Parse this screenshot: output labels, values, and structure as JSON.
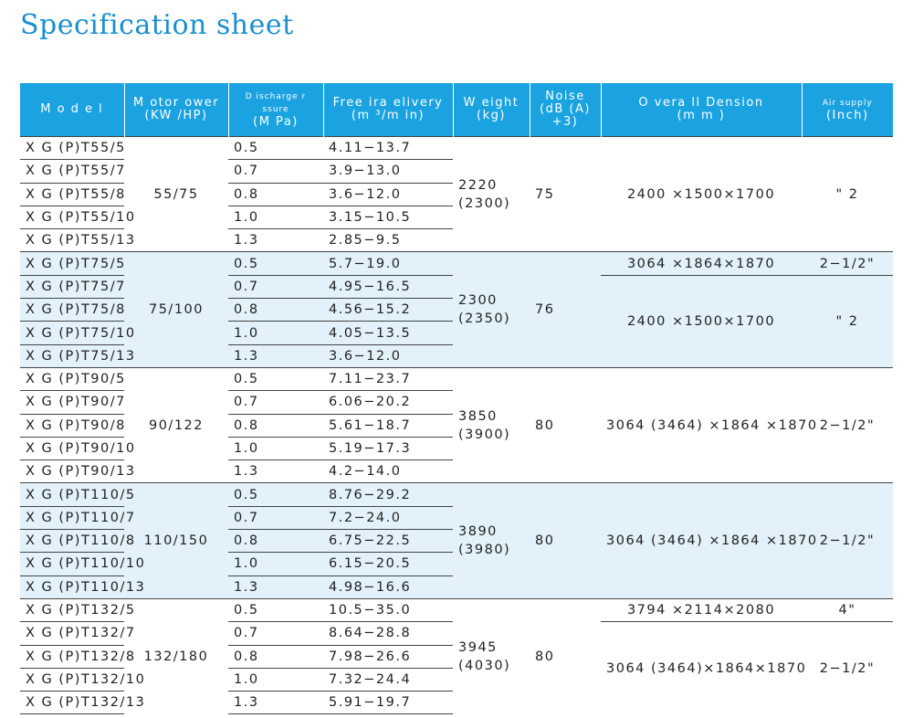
{
  "title": "Specification sheet",
  "headers": {
    "model": "M o d e l",
    "motor_power": "M otor ower (KW /HP)",
    "discharge_pressure": "D ischarge r ssure",
    "discharge_pressure_unit": "(M Pa)",
    "free_air_delivery": "Free ira elivery",
    "free_air_delivery_unit": "(m ³/m in)",
    "weight": "W eight",
    "weight_unit": "(kg)",
    "noise": "Noise",
    "noise_unit": "(dB (A) +3)",
    "overall_dimension": "O vera ll Dension",
    "overall_dimension_unit": "(m m )",
    "air_supply": "Air supply",
    "air_supply_unit": "(Inch)"
  },
  "groups": [
    {
      "motor_power": "55/75",
      "weight": "2220",
      "weight_alt": "(2300)",
      "noise": "75",
      "shaded": false,
      "rows": [
        {
          "model": "X G (P)T55/5",
          "pressure": "0.5",
          "flow": "4.11−13.7"
        },
        {
          "model": "X G (P)T55/7",
          "pressure": "0.7",
          "flow": "3.9−13.0"
        },
        {
          "model": "X G (P)T55/8",
          "pressure": "0.8",
          "flow": "3.6−12.0"
        },
        {
          "model": "X G (P)T55/10",
          "pressure": "1.0",
          "flow": "3.15−10.5"
        },
        {
          "model": "X G (P)T55/13",
          "pressure": "1.3",
          "flow": "2.85−9.5"
        }
      ],
      "dim_rows": [
        {
          "dimension": "2400 ×1500×1700",
          "air": "\" 2",
          "span": 5
        }
      ]
    },
    {
      "motor_power": "75/100",
      "weight": "2300",
      "weight_alt": "(2350)",
      "noise": "76",
      "shaded": true,
      "rows": [
        {
          "model": "X G (P)T75/5",
          "pressure": "0.5",
          "flow": "5.7−19.0"
        },
        {
          "model": "X G (P)T75/7",
          "pressure": "0.7",
          "flow": "4.95−16.5"
        },
        {
          "model": "X G (P)T75/8",
          "pressure": "0.8",
          "flow": "4.56−15.2"
        },
        {
          "model": "X G (P)T75/10",
          "pressure": "1.0",
          "flow": "4.05−13.5"
        },
        {
          "model": "X G (P)T75/13",
          "pressure": "1.3",
          "flow": "3.6−12.0"
        }
      ],
      "dim_rows": [
        {
          "dimension": "3064 ×1864×1870",
          "air": "2−1/2\"",
          "span": 1,
          "underline": true
        },
        {
          "dimension": "2400 ×1500×1700",
          "air": "\" 2",
          "span": 4
        }
      ]
    },
    {
      "motor_power": "90/122",
      "weight": "3850",
      "weight_alt": "(3900)",
      "noise": "80",
      "shaded": false,
      "rows": [
        {
          "model": "X G (P)T90/5",
          "pressure": "0.5",
          "flow": "7.11−23.7"
        },
        {
          "model": "X G (P)T90/7",
          "pressure": "0.7",
          "flow": "6.06−20.2"
        },
        {
          "model": "X G (P)T90/8",
          "pressure": "0.8",
          "flow": "5.61−18.7"
        },
        {
          "model": "X G (P)T90/10",
          "pressure": "1.0",
          "flow": "5.19−17.3"
        },
        {
          "model": "X G (P)T90/13",
          "pressure": "1.3",
          "flow": "4.2−14.0"
        }
      ],
      "dim_rows": [
        {
          "dimension": "3064 (3464)  ×1864 ×1870",
          "air": "2−1/2\"",
          "span": 5
        }
      ]
    },
    {
      "motor_power": "110/150",
      "weight": "3890",
      "weight_alt": "(3980)",
      "noise": "80",
      "shaded": true,
      "rows": [
        {
          "model": "X G (P)T110/5",
          "pressure": "0.5",
          "flow": "8.76−29.2"
        },
        {
          "model": "X G (P)T110/7",
          "pressure": "0.7",
          "flow": "7.2−24.0"
        },
        {
          "model": "X G (P)T110/8",
          "pressure": "0.8",
          "flow": "6.75−22.5"
        },
        {
          "model": "X G (P)T110/10",
          "pressure": "1.0",
          "flow": "6.15−20.5"
        },
        {
          "model": "X G (P)T110/13",
          "pressure": "1.3",
          "flow": "4.98−16.6"
        }
      ],
      "dim_rows": [
        {
          "dimension": "3064 (3464)  ×1864 ×1870",
          "air": "2−1/2\"",
          "span": 5
        }
      ]
    },
    {
      "motor_power": "132/180",
      "weight": "3945",
      "weight_alt": "(4030)",
      "noise": "80",
      "shaded": false,
      "rows": [
        {
          "model": "X G (P)T132/5",
          "pressure": "0.5",
          "flow": "10.5−35.0"
        },
        {
          "model": "X G (P)T132/7",
          "pressure": "0.7",
          "flow": "8.64−28.8"
        },
        {
          "model": "X G (P)T132/8",
          "pressure": "0.8",
          "flow": "7.98−26.6"
        },
        {
          "model": "X G (P)T132/10",
          "pressure": "1.0",
          "flow": "7.32−24.4"
        },
        {
          "model": "X G (P)T132/13",
          "pressure": "1.3",
          "flow": "5.91−19.7"
        }
      ],
      "dim_rows": [
        {
          "dimension": "3794 ×2114×2080",
          "air": "4\"",
          "span": 1,
          "underline": true
        },
        {
          "dimension": "3064 (3464)×1864×1870",
          "air": "2−1/2\"",
          "span": 4
        }
      ]
    }
  ]
}
